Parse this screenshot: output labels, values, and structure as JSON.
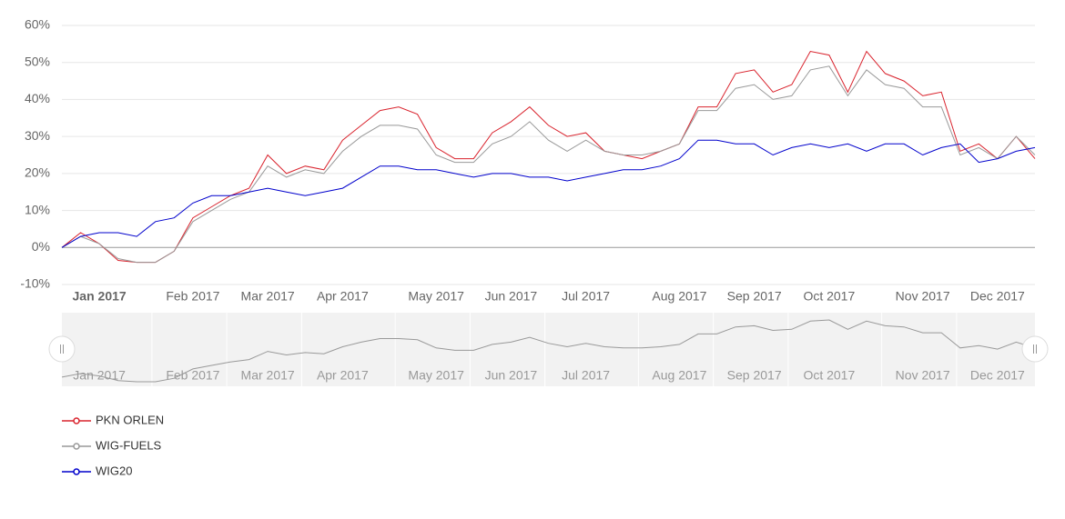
{
  "chart_data": {
    "type": "line",
    "categories": [
      null,
      null,
      "Jan 2017",
      null,
      null,
      null,
      null,
      "Feb 2017",
      null,
      null,
      null,
      "Mar 2017",
      null,
      null,
      null,
      "Apr 2017",
      null,
      null,
      null,
      null,
      "May 2017",
      null,
      null,
      null,
      "Jun 2017",
      null,
      null,
      null,
      "Jul 2017",
      null,
      null,
      null,
      null,
      "Aug 2017",
      null,
      null,
      null,
      "Sep 2017",
      null,
      null,
      null,
      "Oct 2017",
      null,
      null,
      null,
      null,
      "Nov 2017",
      null,
      null,
      null,
      "Dec 2017",
      null,
      null
    ],
    "series": [
      {
        "name": "PKN ORLEN",
        "color": "#d9232d",
        "values": [
          0,
          4,
          1,
          -3.5,
          -4,
          -4,
          -1,
          8,
          11,
          14,
          16,
          25,
          20,
          22,
          21,
          29,
          33,
          37,
          38,
          36,
          27,
          24,
          24,
          31,
          34,
          38,
          33,
          30,
          31,
          26,
          25,
          24,
          26,
          28,
          38,
          38,
          47,
          48,
          42,
          44,
          53,
          52,
          42,
          53,
          47,
          45,
          41,
          42,
          26,
          28,
          24,
          30,
          24
        ]
      },
      {
        "name": "WIG-FUELS",
        "color": "#999999",
        "values": [
          0,
          3,
          1,
          -3,
          -4,
          -4,
          -1,
          7,
          10,
          13,
          15,
          22,
          19,
          21,
          20,
          26,
          30,
          33,
          33,
          32,
          25,
          23,
          23,
          28,
          30,
          34,
          29,
          26,
          29,
          26,
          25,
          25,
          26,
          28,
          37,
          37,
          43,
          44,
          40,
          41,
          48,
          49,
          41,
          48,
          44,
          43,
          38,
          38,
          25,
          27,
          24,
          30,
          25
        ]
      },
      {
        "name": "WIG20",
        "color": "#0000cc",
        "values": [
          0,
          3,
          4,
          4,
          3,
          7,
          8,
          12,
          14,
          14,
          15,
          16,
          15,
          14,
          15,
          16,
          19,
          22,
          22,
          21,
          21,
          20,
          19,
          20,
          20,
          19,
          19,
          18,
          19,
          20,
          21,
          21,
          22,
          24,
          29,
          29,
          28,
          28,
          25,
          27,
          28,
          27,
          28,
          26,
          28,
          28,
          25,
          27,
          28,
          23,
          24,
          26,
          27
        ]
      }
    ],
    "ylim": [
      -10,
      60
    ],
    "yticks": [
      {
        "value": -10,
        "label": "-10%"
      },
      {
        "value": 0,
        "label": "0%"
      },
      {
        "value": 10,
        "label": "10%"
      },
      {
        "value": 20,
        "label": "20%"
      },
      {
        "value": 30,
        "label": "30%"
      },
      {
        "value": 40,
        "label": "40%"
      },
      {
        "value": 50,
        "label": "50%"
      },
      {
        "value": 60,
        "label": "60%"
      }
    ],
    "grid": true
  }
}
